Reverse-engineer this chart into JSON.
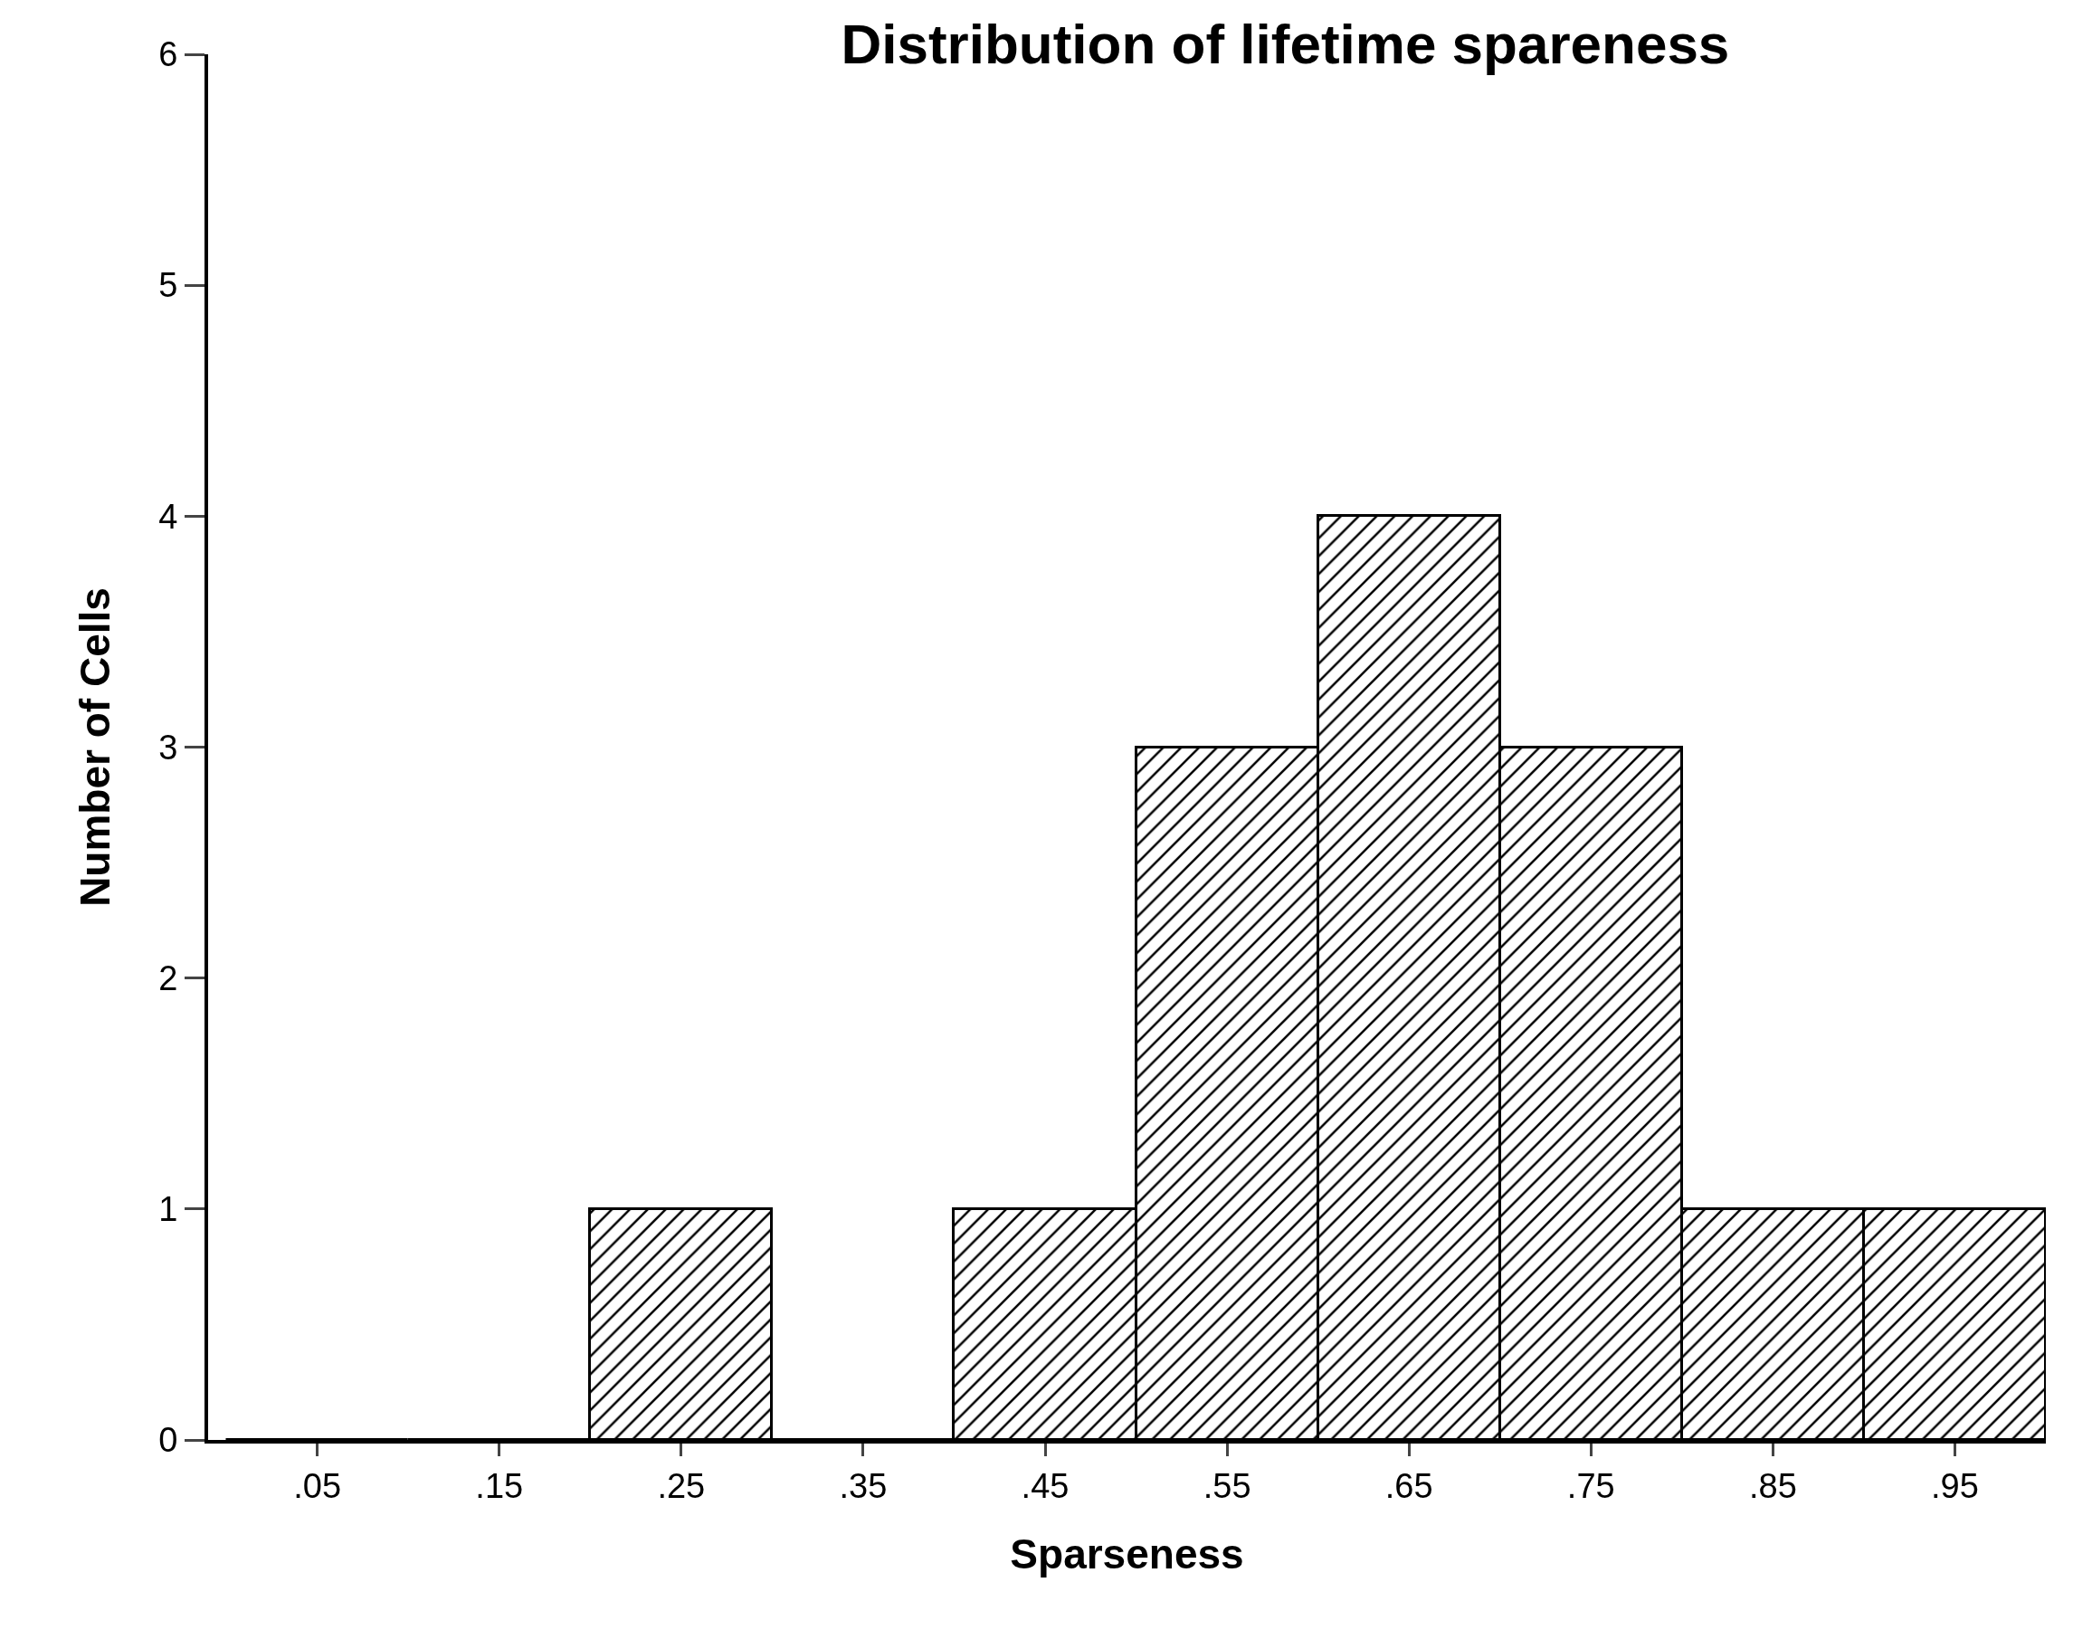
{
  "chart_data": {
    "type": "histogram",
    "title": "Distribution of lifetime spareness",
    "xlabel": "Sparseness",
    "ylabel": "Number of Cells",
    "bins": [
      0,
      0.1,
      0.2,
      0.3,
      0.4,
      0.5,
      0.6,
      0.7,
      0.8,
      0.9,
      1.0
    ],
    "values": [
      0,
      0,
      1,
      0,
      1,
      3,
      4,
      3,
      1,
      1
    ],
    "color": "#000000",
    "xlim": [
      -0.01,
      1.0
    ],
    "xticks": [
      {
        "value": 0.05,
        "label": ".05"
      },
      {
        "value": 0.15,
        "label": ".15"
      },
      {
        "value": 0.25,
        "label": ".25"
      },
      {
        "value": 0.35,
        "label": ".35"
      },
      {
        "value": 0.45,
        "label": ".45"
      },
      {
        "value": 0.55,
        "label": ".55"
      },
      {
        "value": 0.65,
        "label": ".65"
      },
      {
        "value": 0.75,
        "label": ".75"
      },
      {
        "value": 0.85,
        "label": ".85"
      },
      {
        "value": 0.95,
        "label": ".95"
      }
    ],
    "ylim": [
      0,
      6
    ],
    "yticks": [
      0,
      1,
      2,
      3,
      4,
      5,
      6
    ],
    "grid": false
  }
}
